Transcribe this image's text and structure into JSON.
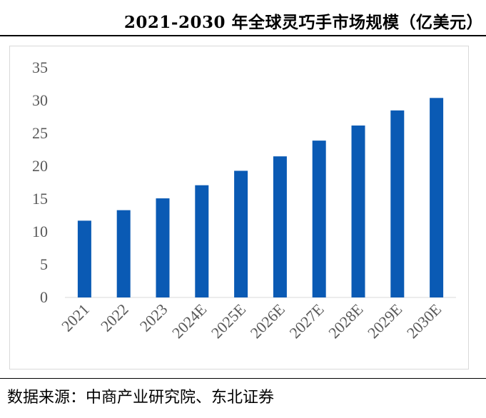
{
  "header": {
    "title": "2021-2030 年全球灵巧手市场规模（亿美元）"
  },
  "footer": {
    "source": "数据来源：中商产业研究院、东北证券"
  },
  "colors": {
    "bar": "#0a5ab4",
    "axis": "#d9d9d9",
    "tick_text": "#595959"
  },
  "chart_data": {
    "type": "bar",
    "title": "2021-2030 年全球灵巧手市场规模（亿美元）",
    "xlabel": "",
    "ylabel": "",
    "categories": [
      "2021",
      "2022",
      "2023",
      "2024E",
      "2025E",
      "2026E",
      "2027E",
      "2028E",
      "2029E",
      "2030E"
    ],
    "values": [
      11.7,
      13.3,
      15.1,
      17.1,
      19.3,
      21.5,
      23.9,
      26.2,
      28.5,
      30.4
    ],
    "ylim": [
      0,
      35
    ],
    "yticks": [
      0,
      5,
      10,
      15,
      20,
      25,
      30,
      35
    ],
    "grid": false,
    "legend": "none"
  }
}
